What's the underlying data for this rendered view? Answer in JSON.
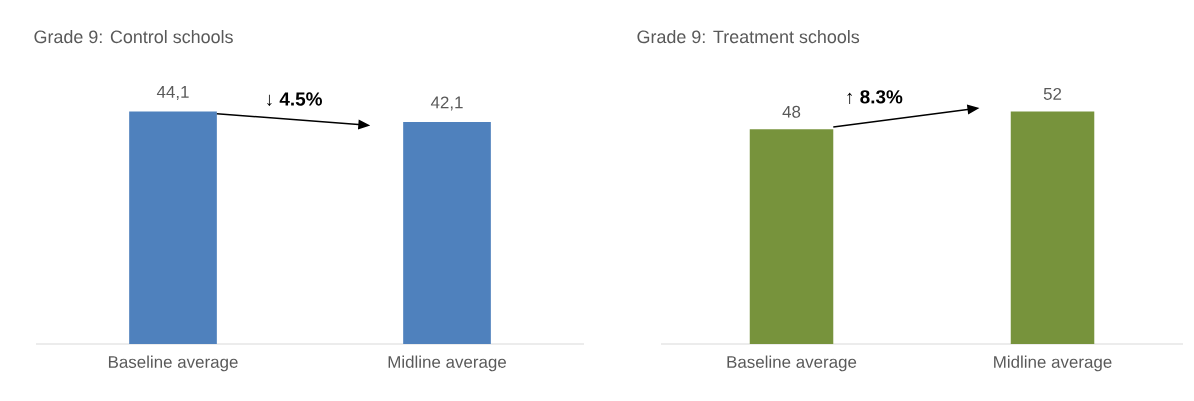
{
  "chart_data": [
    {
      "type": "bar",
      "title": "Grade 9: Control schools",
      "categories": [
        "Baseline average",
        "Midline average"
      ],
      "values": [
        44.1,
        42.1
      ],
      "value_labels": [
        "44,1",
        "42,1"
      ],
      "color": "#4f81bd",
      "tick_labels": "x",
      "annotations": [
        "↓ **4.5%**"
      ]
    },
    {
      "type": "bar",
      "title": "Grade 9: Treatment schools",
      "categories": [
        "Baseline average",
        "Midline average"
      ],
      "values": [
        48,
        52
      ],
      "value_labels": [
        "48",
        "52"
      ],
      "color": "#77933c",
      "tick_labels": "x",
      "annotations": [
        "↑ **8.3%**"
      ]
    }
  ]
}
